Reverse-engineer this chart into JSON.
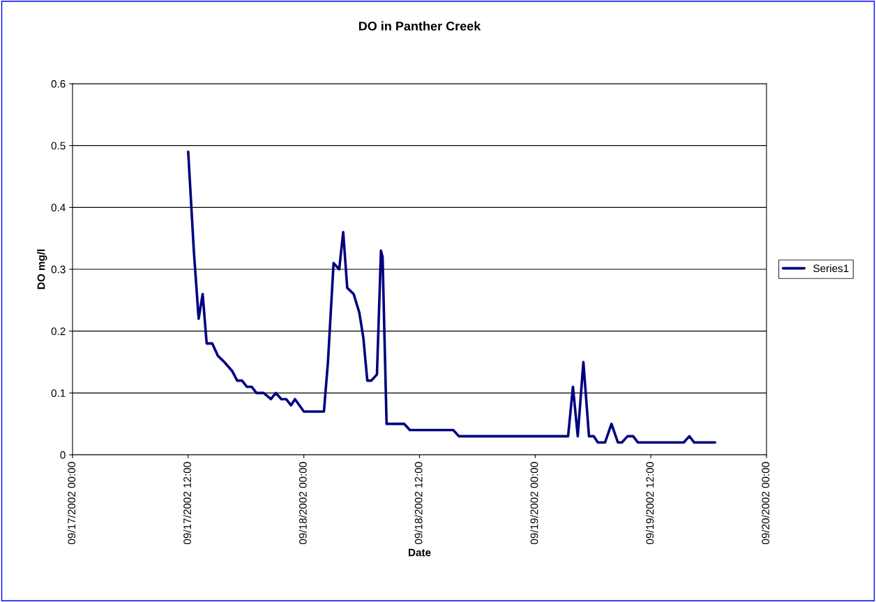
{
  "chart_data": {
    "type": "line",
    "title": "DO in Panther Creek",
    "xlabel": "Date",
    "ylabel": "DO mg/l",
    "x": [
      "2002-09-17T12:00",
      "2002-09-17T12:35",
      "2002-09-17T13:05",
      "2002-09-17T13:30",
      "2002-09-17T13:55",
      "2002-09-17T14:30",
      "2002-09-17T15:05",
      "2002-09-17T15:45",
      "2002-09-17T16:35",
      "2002-09-17T17:05",
      "2002-09-17T17:35",
      "2002-09-17T18:05",
      "2002-09-17T18:35",
      "2002-09-17T19:05",
      "2002-09-17T19:50",
      "2002-09-17T20:35",
      "2002-09-17T21:05",
      "2002-09-17T21:40",
      "2002-09-17T22:10",
      "2002-09-17T22:40",
      "2002-09-17T23:05",
      "2002-09-18T00:00",
      "2002-09-18T01:35",
      "2002-09-18T02:05",
      "2002-09-18T02:30",
      "2002-09-18T03:05",
      "2002-09-18T03:40",
      "2002-09-18T04:05",
      "2002-09-18T04:30",
      "2002-09-18T05:10",
      "2002-09-18T05:45",
      "2002-09-18T06:10",
      "2002-09-18T06:35",
      "2002-09-18T07:00",
      "2002-09-18T07:35",
      "2002-09-18T08:00",
      "2002-09-18T08:10",
      "2002-09-18T08:35",
      "2002-09-18T09:00",
      "2002-09-18T10:25",
      "2002-09-18T11:00",
      "2002-09-18T15:30",
      "2002-09-18T16:05",
      "2002-09-19T03:05",
      "2002-09-19T03:25",
      "2002-09-19T03:55",
      "2002-09-19T04:25",
      "2002-09-19T05:00",
      "2002-09-19T05:35",
      "2002-09-19T06:05",
      "2002-09-19T06:30",
      "2002-09-19T07:15",
      "2002-09-19T07:55",
      "2002-09-19T08:35",
      "2002-09-19T09:00",
      "2002-09-19T09:35",
      "2002-09-19T10:10",
      "2002-09-19T10:40",
      "2002-09-19T15:25",
      "2002-09-19T16:00",
      "2002-09-19T16:30",
      "2002-09-19T18:40"
    ],
    "series": [
      {
        "name": "Series1",
        "color": "#000080",
        "values": [
          0.49,
          0.33,
          0.22,
          0.26,
          0.18,
          0.18,
          0.16,
          0.15,
          0.135,
          0.12,
          0.12,
          0.11,
          0.11,
          0.1,
          0.1,
          0.09,
          0.1,
          0.09,
          0.09,
          0.08,
          0.09,
          0.07,
          0.07,
          0.07,
          0.15,
          0.31,
          0.3,
          0.36,
          0.27,
          0.26,
          0.23,
          0.19,
          0.12,
          0.12,
          0.13,
          0.33,
          0.32,
          0.05,
          0.05,
          0.05,
          0.04,
          0.04,
          0.03,
          0.03,
          0.03,
          0.11,
          0.03,
          0.15,
          0.03,
          0.03,
          0.02,
          0.02,
          0.05,
          0.02,
          0.02,
          0.03,
          0.03,
          0.02,
          0.02,
          0.03,
          0.02,
          0.02
        ]
      }
    ],
    "xlim": [
      "2002-09-17T00:00",
      "2002-09-20T00:00"
    ],
    "xticks": [
      {
        "value": "2002-09-17T00:00",
        "label": "09/17/2002 00:00"
      },
      {
        "value": "2002-09-17T12:00",
        "label": "09/17/2002 12:00"
      },
      {
        "value": "2002-09-18T00:00",
        "label": "09/18/2002 00:00"
      },
      {
        "value": "2002-09-18T12:00",
        "label": "09/18/2002 12:00"
      },
      {
        "value": "2002-09-19T00:00",
        "label": "09/19/2002 00:00"
      },
      {
        "value": "2002-09-19T12:00",
        "label": "09/19/2002 12:00"
      },
      {
        "value": "2002-09-20T00:00",
        "label": "09/20/2002 00:00"
      }
    ],
    "ylim": [
      0,
      0.6
    ],
    "yticks": [
      0,
      0.1,
      0.2,
      0.3,
      0.4,
      0.5,
      0.6
    ],
    "grid": "y",
    "legend": "right",
    "marker": "none",
    "line_style": "solid"
  }
}
